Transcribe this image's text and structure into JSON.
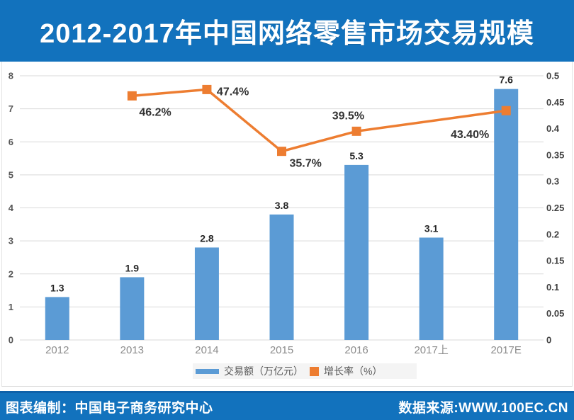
{
  "header": {
    "title": "2012-2017年中国网络零售市场交易规模"
  },
  "footer": {
    "left": "图表编制：中国电子商务研究中心",
    "right": "数据来源:WWW.100EC.CN"
  },
  "legend": {
    "items": [
      {
        "label": "交易额（万亿元）",
        "color": "#5b9bd5",
        "shape": "bar"
      },
      {
        "label": "增长率（%）",
        "color": "#ed7d31",
        "shape": "square"
      }
    ]
  },
  "colors": {
    "banner_blue": "#1272bd",
    "bar_blue": "#5b9bd5",
    "line_orange": "#ed7d31",
    "gridline": "#d9d9d9",
    "left_axis_text": "#565656",
    "right_axis_text": "#3f3f3f",
    "category_text": "#8c8c8c",
    "data_label_text": "#262626",
    "percent_label_text": "#333333"
  },
  "chart_data": {
    "type": "bar",
    "title": "2012-2017年中国网络零售市场交易规模",
    "categories": [
      "2012",
      "2013",
      "2014",
      "2015",
      "2016",
      "2017上",
      "2017E"
    ],
    "series": [
      {
        "name": "交易额（万亿元）",
        "type": "bar",
        "axis": "left",
        "values": [
          1.3,
          1.9,
          2.8,
          3.8,
          5.3,
          3.1,
          7.6
        ],
        "labels": [
          "1.3",
          "1.9",
          "2.8",
          "3.8",
          "5.3",
          "3.1",
          "7.6"
        ]
      },
      {
        "name": "增长率（%）",
        "type": "line",
        "axis": "right",
        "values": [
          null,
          0.462,
          0.474,
          0.357,
          0.395,
          null,
          0.434
        ],
        "labels": [
          null,
          "46.2%",
          "47.4%",
          "35.7%",
          "39.5%",
          null,
          "43.40%"
        ]
      }
    ],
    "left_axis": {
      "min": 0,
      "max": 8,
      "step": 1,
      "tick_labels": [
        "0",
        "1",
        "2",
        "3",
        "4",
        "5",
        "6",
        "7",
        "8"
      ]
    },
    "right_axis": {
      "min": 0,
      "max": 0.5,
      "step": 0.05,
      "tick_labels": [
        "0",
        "0.05",
        "0.1",
        "0.15",
        "0.2",
        "0.25",
        "0.3",
        "0.35",
        "0.4",
        "0.45",
        "0.5"
      ]
    },
    "grid": true,
    "legend_position": "bottom"
  }
}
